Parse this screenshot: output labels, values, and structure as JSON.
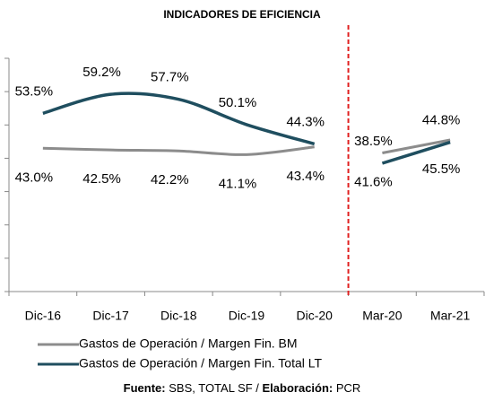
{
  "chart_data": {
    "type": "line",
    "title": "INDICADORES DE EFICIENCIA",
    "categories": [
      "Dic-16",
      "Dic-17",
      "Dic-18",
      "Dic-19",
      "Dic-20",
      "Mar-20",
      "Mar-21"
    ],
    "series": [
      {
        "name": "Gastos de Operación / Margen Fin. BM",
        "color": "#8c8c8c",
        "label_color": "#000000",
        "values": [
          43.0,
          42.5,
          42.2,
          41.1,
          43.4,
          41.6,
          45.5
        ],
        "value_labels": [
          "43.0%",
          "42.5%",
          "42.2%",
          "41.1%",
          "43.4%",
          "41.6%",
          "45.5%"
        ]
      },
      {
        "name": "Gastos de Operación / Margen Fin. Total LT",
        "color": "#1f4e5f",
        "label_color": "#3d8eaa",
        "values": [
          53.5,
          59.2,
          57.7,
          50.1,
          44.3,
          38.5,
          44.8
        ],
        "value_labels": [
          "53.5%",
          "59.2%",
          "57.7%",
          "50.1%",
          "44.3%",
          "38.5%",
          "44.8%"
        ]
      }
    ],
    "ylim": [
      0,
      70
    ],
    "yticks": [
      0,
      10,
      20,
      30,
      40,
      50,
      60,
      70
    ],
    "smooth": true,
    "separator": {
      "after_index": 4,
      "color": "#e02020",
      "style": "dashed"
    },
    "legend": "bottom",
    "source": {
      "label1": "Fuente:",
      "text1": " SBS, TOTAL SF / ",
      "label2": "Elaboración:",
      "text2": " PCR"
    }
  }
}
